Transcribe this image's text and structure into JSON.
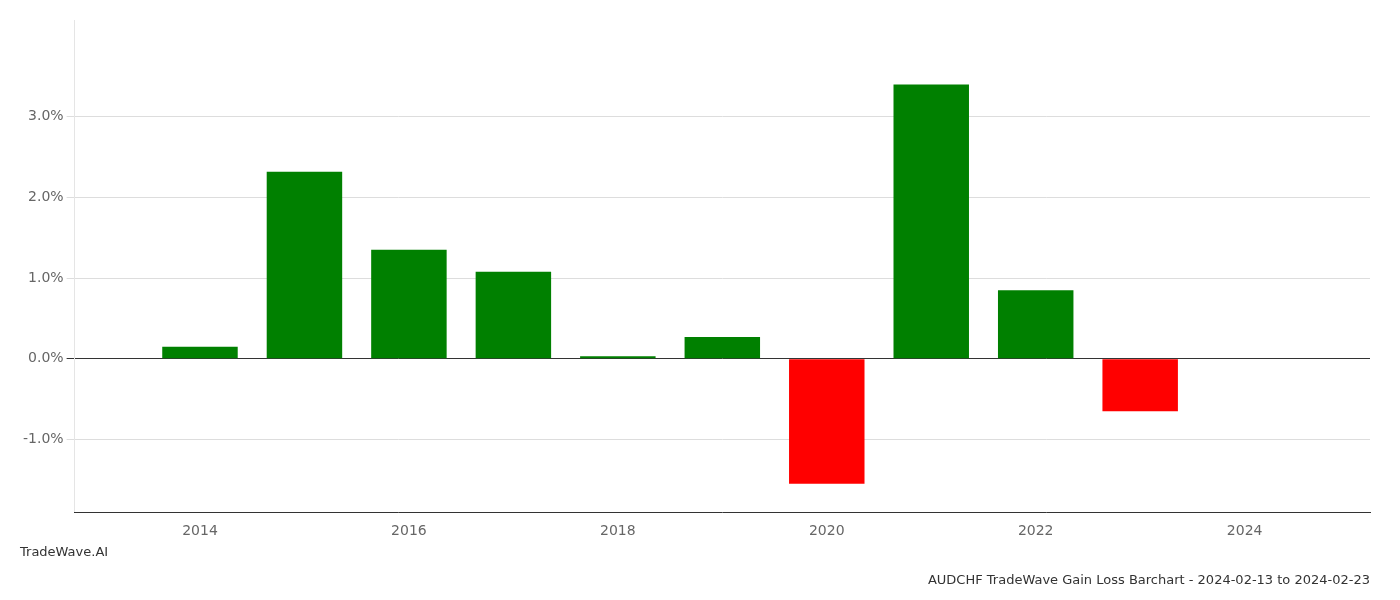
{
  "chart_data": {
    "type": "bar",
    "title": "AUDCHF TradeWave Gain Loss Barchart - 2024-02-13 to 2024-02-23",
    "annotations": [
      "TradeWave.AI"
    ],
    "x": [
      2014,
      2015,
      2016,
      2017,
      2018,
      2019,
      2020,
      2021,
      2022,
      2023
    ],
    "values": [
      0.0015,
      0.0232,
      0.0135,
      0.0108,
      0.0003,
      0.0027,
      -0.0155,
      0.034,
      0.0085,
      -0.0065
    ],
    "colors": [
      "#008000",
      "#008000",
      "#008000",
      "#008000",
      "#008000",
      "#008000",
      "#ff0000",
      "#008000",
      "#008000",
      "#ff0000"
    ],
    "xlim": [
      2012.8,
      2025.2
    ],
    "xticks": [
      2014,
      2016,
      2018,
      2020,
      2022,
      2024
    ],
    "ylim": [
      -0.019,
      0.042
    ],
    "yticks": [
      {
        "value": -0.01,
        "label": "-1.0%"
      },
      {
        "value": 0.0,
        "label": "0.0%"
      },
      {
        "value": 0.01,
        "label": "1.0%"
      },
      {
        "value": 0.02,
        "label": "2.0%"
      },
      {
        "value": 0.03,
        "label": "3.0%"
      }
    ],
    "grid": true
  }
}
